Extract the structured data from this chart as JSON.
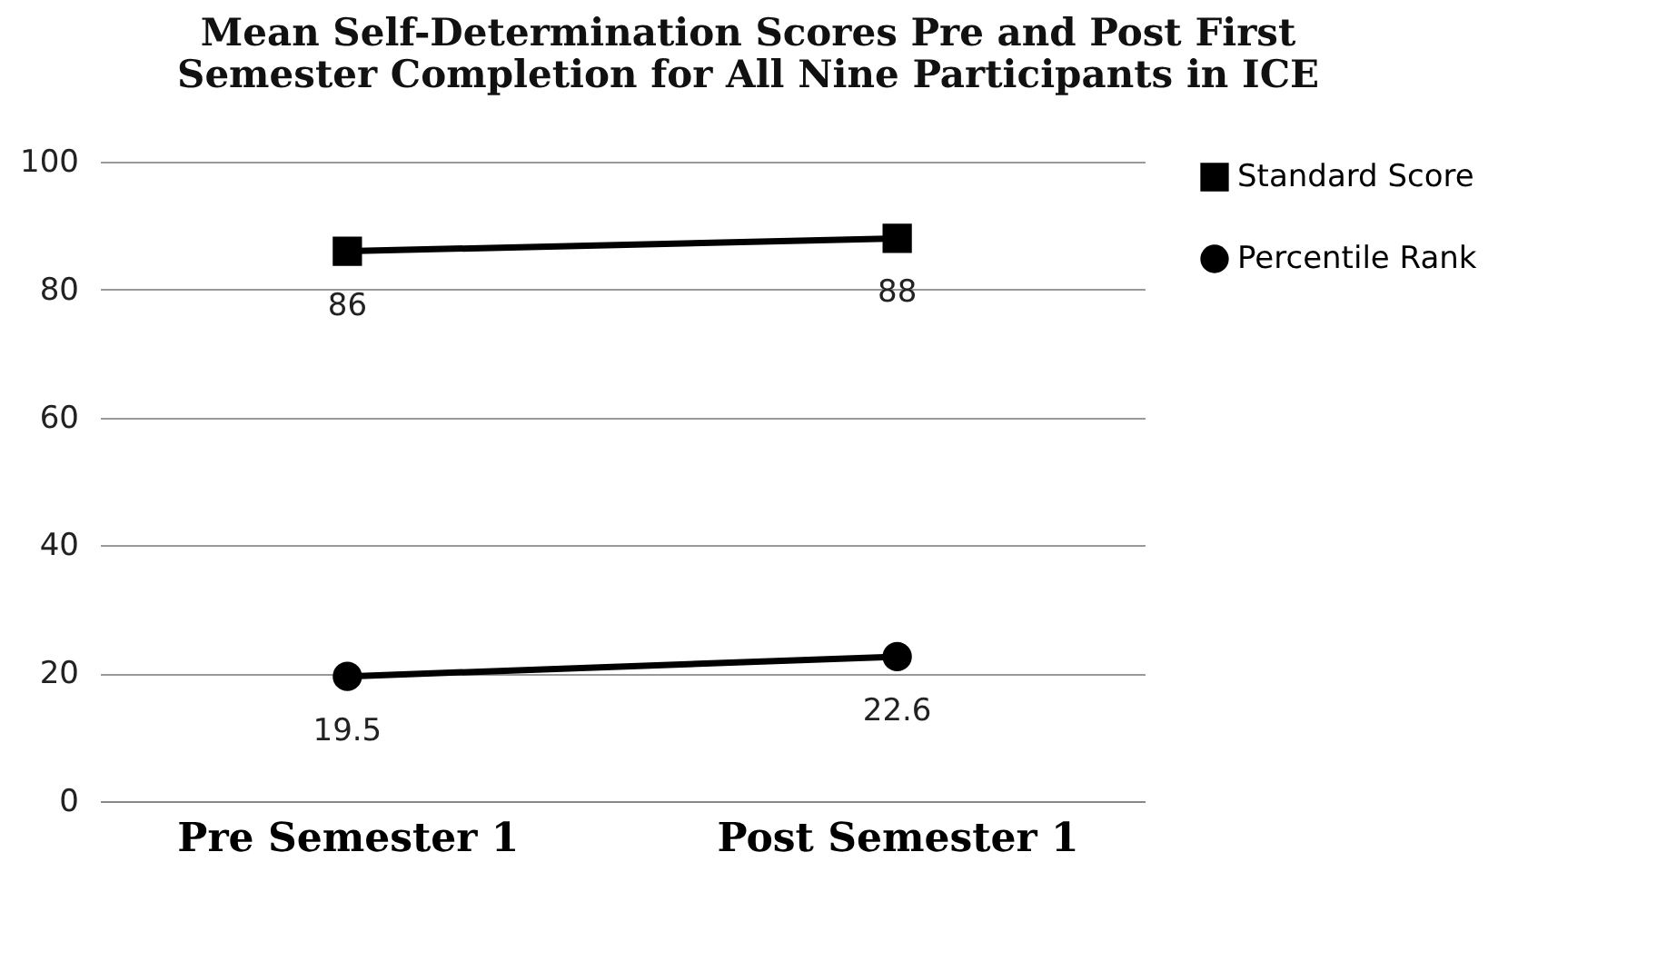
{
  "chart_data": {
    "type": "line",
    "title": "Mean Self-Determination Scores Pre and Post First Semester Completion for All Nine Participants in ICE",
    "categories": [
      "Pre Semester 1",
      "Post Semester 1"
    ],
    "series": [
      {
        "name": "Standard Score",
        "color": "#000000",
        "marker": "square",
        "values": [
          86,
          88
        ]
      },
      {
        "name": "Percentile Rank",
        "color": "#000000",
        "marker": "circle",
        "values": [
          19.5,
          22.6
        ]
      }
    ],
    "ylim": [
      0,
      100
    ],
    "yticks": [
      0,
      20,
      40,
      60,
      80,
      100
    ],
    "grid": "y",
    "legend": "right",
    "data_labels": true,
    "line_style": "solid"
  }
}
